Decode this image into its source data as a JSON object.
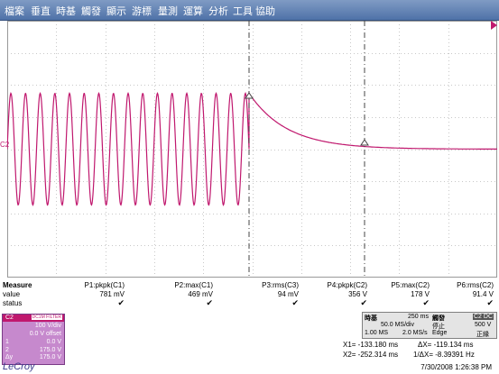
{
  "menu": [
    "檔案",
    "垂直",
    "時基",
    "觸發",
    "顯示",
    "游標",
    "量測",
    "運算",
    "分析",
    "工具",
    "協助"
  ],
  "channel_marker": "C2",
  "colors": {
    "trace": "#c0186e",
    "grid": "#c8c8c8",
    "menubar": "#5b7bb0"
  },
  "measure": {
    "title": "Measure",
    "row_value": "value",
    "row_status": "status",
    "params": [
      {
        "name": "P1:pkpk(C1)",
        "value": "781 mV",
        "status": "✔"
      },
      {
        "name": "P2:max(C1)",
        "value": "469 mV",
        "status": "✔"
      },
      {
        "name": "P3:rms(C3)",
        "value": "94 mV",
        "status": "✔"
      },
      {
        "name": "P4:pkpk(C2)",
        "value": "356 V",
        "status": "✔"
      },
      {
        "name": "P5:max(C2)",
        "value": "178 V",
        "status": "✔"
      },
      {
        "name": "P6:rms(C2)",
        "value": "91.4 V",
        "status": "✔"
      }
    ]
  },
  "channel_box": {
    "name": "C2",
    "tag": "DC1M FILTER",
    "rows": [
      {
        "left": "",
        "right": "100 V/div"
      },
      {
        "left": "",
        "right": "0.0 V offset"
      },
      {
        "left": "1",
        "right": "0.0 V"
      },
      {
        "left": "2",
        "right": "175.0 V"
      },
      {
        "left": "Δy",
        "right": "175.0 V"
      }
    ]
  },
  "timebase": {
    "label": "時基",
    "value": "250 ms",
    "rate": "50.0 MS/div",
    "samples": "1.00 MS",
    "srate": "2.0 MS/s"
  },
  "trigger": {
    "label": "觸發",
    "tag": "C2 DC",
    "state": "停止",
    "level": "500 V",
    "type": "Edge",
    "slope": "正緣"
  },
  "cursors": {
    "x1": "X1= -133.180 ms",
    "dx": "ΔX= -119.134 ms",
    "x2": "X2= -252.314 ms",
    "inv_dx": "1/ΔX= -8.39391 Hz"
  },
  "brand": "LeCroy",
  "timestamp": "7/30/2008 1:26:38 PM"
}
